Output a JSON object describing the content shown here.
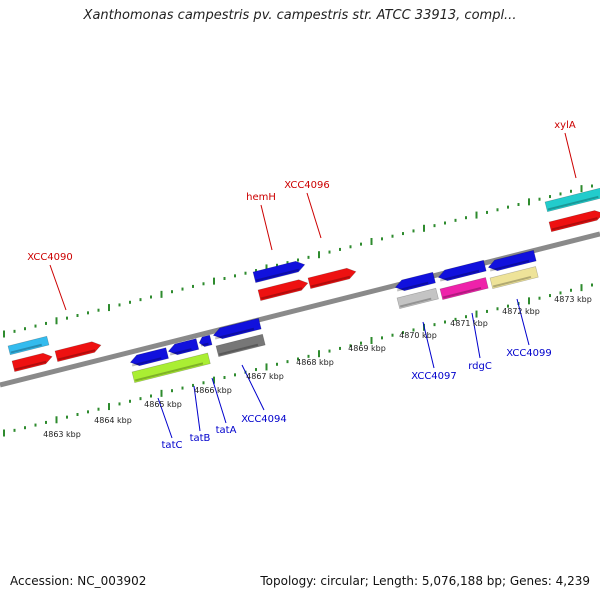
{
  "title": "Xanthomonas campestris pv. campestris str. ATCC 33913, compl...",
  "footer": {
    "accession": "Accession: NC_003902",
    "topology": "Topology: circular; Length: 5,076,188 bp; Genes: 4,239"
  },
  "colors": {
    "backbone": "#8a8a8a",
    "tick": "#2e8b2e",
    "upper_label": "#cc0000",
    "lower_label": "#0000cc",
    "label_line_upper": "#cc0000",
    "label_line_lower": "#0000cc"
  },
  "kbp_labels": [
    "4863 kbp",
    "4864 kbp",
    "4865 kbp",
    "4866 kbp",
    "4867 kbp",
    "4868 kbp",
    "4869 kbp",
    "4870 kbp",
    "4871 kbp",
    "4872 kbp",
    "4873 kbp"
  ],
  "upper_gene_labels": [
    "XCC4090",
    "hemH",
    "XCC4096",
    "xylA"
  ],
  "lower_gene_labels": [
    "tatC",
    "tatB",
    "tatA",
    "XCC4094",
    "XCC4097",
    "rdgC",
    "XCC4099"
  ],
  "feature_colors": {
    "red": "#ee1111",
    "blue": "#1111dd",
    "cyan": "#33bbee",
    "teal": "#22cccc",
    "green": "#aaee33",
    "gray": "#777777",
    "lightgray": "#c4c4c4",
    "magenta": "#ee22aa",
    "khaki": "#eee399"
  }
}
